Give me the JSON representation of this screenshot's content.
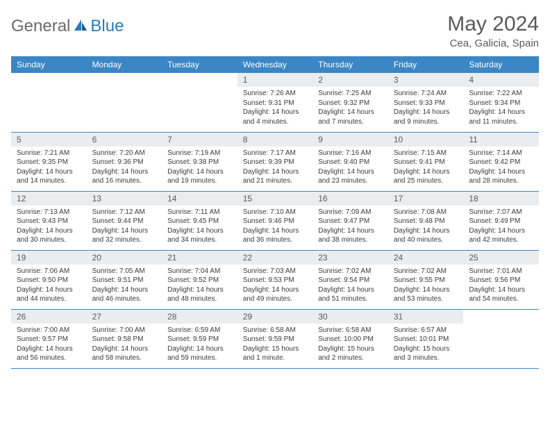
{
  "brand": {
    "general": "General",
    "blue": "Blue"
  },
  "title": "May 2024",
  "location": "Cea, Galicia, Spain",
  "weekdays": [
    "Sunday",
    "Monday",
    "Tuesday",
    "Wednesday",
    "Thursday",
    "Friday",
    "Saturday"
  ],
  "colors": {
    "header_bg": "#3b86c4",
    "header_text": "#ffffff",
    "daynum_bg": "#e9edf0",
    "text_gray": "#595959",
    "body_text": "#3a3a3a",
    "brand_gray": "#6b6b6b",
    "brand_blue": "#2a7ab9"
  },
  "weeks": [
    [
      {
        "n": "",
        "empty": true
      },
      {
        "n": "",
        "empty": true
      },
      {
        "n": "",
        "empty": true
      },
      {
        "n": "1",
        "sr": "Sunrise: 7:26 AM",
        "ss": "Sunset: 9:31 PM",
        "dl": "Daylight: 14 hours and 4 minutes."
      },
      {
        "n": "2",
        "sr": "Sunrise: 7:25 AM",
        "ss": "Sunset: 9:32 PM",
        "dl": "Daylight: 14 hours and 7 minutes."
      },
      {
        "n": "3",
        "sr": "Sunrise: 7:24 AM",
        "ss": "Sunset: 9:33 PM",
        "dl": "Daylight: 14 hours and 9 minutes."
      },
      {
        "n": "4",
        "sr": "Sunrise: 7:22 AM",
        "ss": "Sunset: 9:34 PM",
        "dl": "Daylight: 14 hours and 11 minutes."
      }
    ],
    [
      {
        "n": "5",
        "sr": "Sunrise: 7:21 AM",
        "ss": "Sunset: 9:35 PM",
        "dl": "Daylight: 14 hours and 14 minutes."
      },
      {
        "n": "6",
        "sr": "Sunrise: 7:20 AM",
        "ss": "Sunset: 9:36 PM",
        "dl": "Daylight: 14 hours and 16 minutes."
      },
      {
        "n": "7",
        "sr": "Sunrise: 7:19 AM",
        "ss": "Sunset: 9:38 PM",
        "dl": "Daylight: 14 hours and 19 minutes."
      },
      {
        "n": "8",
        "sr": "Sunrise: 7:17 AM",
        "ss": "Sunset: 9:39 PM",
        "dl": "Daylight: 14 hours and 21 minutes."
      },
      {
        "n": "9",
        "sr": "Sunrise: 7:16 AM",
        "ss": "Sunset: 9:40 PM",
        "dl": "Daylight: 14 hours and 23 minutes."
      },
      {
        "n": "10",
        "sr": "Sunrise: 7:15 AM",
        "ss": "Sunset: 9:41 PM",
        "dl": "Daylight: 14 hours and 25 minutes."
      },
      {
        "n": "11",
        "sr": "Sunrise: 7:14 AM",
        "ss": "Sunset: 9:42 PM",
        "dl": "Daylight: 14 hours and 28 minutes."
      }
    ],
    [
      {
        "n": "12",
        "sr": "Sunrise: 7:13 AM",
        "ss": "Sunset: 9:43 PM",
        "dl": "Daylight: 14 hours and 30 minutes."
      },
      {
        "n": "13",
        "sr": "Sunrise: 7:12 AM",
        "ss": "Sunset: 9:44 PM",
        "dl": "Daylight: 14 hours and 32 minutes."
      },
      {
        "n": "14",
        "sr": "Sunrise: 7:11 AM",
        "ss": "Sunset: 9:45 PM",
        "dl": "Daylight: 14 hours and 34 minutes."
      },
      {
        "n": "15",
        "sr": "Sunrise: 7:10 AM",
        "ss": "Sunset: 9:46 PM",
        "dl": "Daylight: 14 hours and 36 minutes."
      },
      {
        "n": "16",
        "sr": "Sunrise: 7:09 AM",
        "ss": "Sunset: 9:47 PM",
        "dl": "Daylight: 14 hours and 38 minutes."
      },
      {
        "n": "17",
        "sr": "Sunrise: 7:08 AM",
        "ss": "Sunset: 9:48 PM",
        "dl": "Daylight: 14 hours and 40 minutes."
      },
      {
        "n": "18",
        "sr": "Sunrise: 7:07 AM",
        "ss": "Sunset: 9:49 PM",
        "dl": "Daylight: 14 hours and 42 minutes."
      }
    ],
    [
      {
        "n": "19",
        "sr": "Sunrise: 7:06 AM",
        "ss": "Sunset: 9:50 PM",
        "dl": "Daylight: 14 hours and 44 minutes."
      },
      {
        "n": "20",
        "sr": "Sunrise: 7:05 AM",
        "ss": "Sunset: 9:51 PM",
        "dl": "Daylight: 14 hours and 46 minutes."
      },
      {
        "n": "21",
        "sr": "Sunrise: 7:04 AM",
        "ss": "Sunset: 9:52 PM",
        "dl": "Daylight: 14 hours and 48 minutes."
      },
      {
        "n": "22",
        "sr": "Sunrise: 7:03 AM",
        "ss": "Sunset: 9:53 PM",
        "dl": "Daylight: 14 hours and 49 minutes."
      },
      {
        "n": "23",
        "sr": "Sunrise: 7:02 AM",
        "ss": "Sunset: 9:54 PM",
        "dl": "Daylight: 14 hours and 51 minutes."
      },
      {
        "n": "24",
        "sr": "Sunrise: 7:02 AM",
        "ss": "Sunset: 9:55 PM",
        "dl": "Daylight: 14 hours and 53 minutes."
      },
      {
        "n": "25",
        "sr": "Sunrise: 7:01 AM",
        "ss": "Sunset: 9:56 PM",
        "dl": "Daylight: 14 hours and 54 minutes."
      }
    ],
    [
      {
        "n": "26",
        "sr": "Sunrise: 7:00 AM",
        "ss": "Sunset: 9:57 PM",
        "dl": "Daylight: 14 hours and 56 minutes."
      },
      {
        "n": "27",
        "sr": "Sunrise: 7:00 AM",
        "ss": "Sunset: 9:58 PM",
        "dl": "Daylight: 14 hours and 58 minutes."
      },
      {
        "n": "28",
        "sr": "Sunrise: 6:59 AM",
        "ss": "Sunset: 9:59 PM",
        "dl": "Daylight: 14 hours and 59 minutes."
      },
      {
        "n": "29",
        "sr": "Sunrise: 6:58 AM",
        "ss": "Sunset: 9:59 PM",
        "dl": "Daylight: 15 hours and 1 minute."
      },
      {
        "n": "30",
        "sr": "Sunrise: 6:58 AM",
        "ss": "Sunset: 10:00 PM",
        "dl": "Daylight: 15 hours and 2 minutes."
      },
      {
        "n": "31",
        "sr": "Sunrise: 6:57 AM",
        "ss": "Sunset: 10:01 PM",
        "dl": "Daylight: 15 hours and 3 minutes."
      },
      {
        "n": "",
        "empty": true
      }
    ]
  ]
}
